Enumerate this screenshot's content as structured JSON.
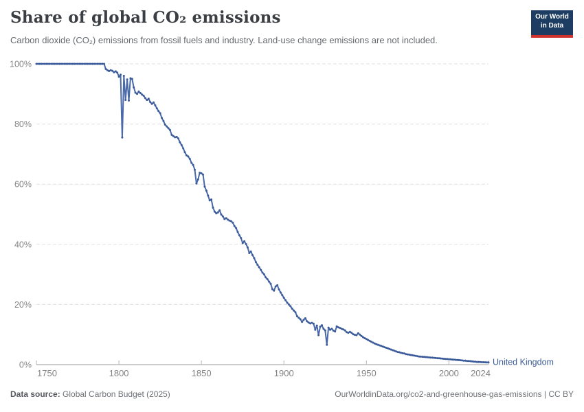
{
  "header": {
    "title": "Share of global CO₂ emissions",
    "subtitle": "Carbon dioxide (CO₂) emissions from fossil fuels and industry. Land-use change emissions are not included.",
    "logo": {
      "line1": "Our World",
      "line2": "in Data",
      "bg_color": "#1d3d63",
      "accent_color": "#d0342c"
    }
  },
  "footer": {
    "source_label": "Data source:",
    "source_value": " Global Carbon Budget (2025)",
    "link": "OurWorldinData.org/co2-and-greenhouse-gas-emissions | CC BY"
  },
  "chart_data": {
    "type": "line",
    "title": "Share of global CO₂ emissions",
    "xlabel": "",
    "ylabel": "",
    "xlim": [
      1750,
      2024
    ],
    "ylim": [
      0,
      100
    ],
    "grid": "horizontal-dashed",
    "legend_position": "end-of-line",
    "line_color": "#4a69a8",
    "marker_color": "#3a5a99",
    "label_color": "#3d5c96",
    "x_ticks": [
      {
        "value": 1750,
        "label": "1750"
      },
      {
        "value": 1800,
        "label": "1800"
      },
      {
        "value": 1850,
        "label": "1850"
      },
      {
        "value": 1900,
        "label": "1900"
      },
      {
        "value": 1950,
        "label": "1950"
      },
      {
        "value": 2000,
        "label": "2000"
      },
      {
        "value": 2024,
        "label": "2024"
      }
    ],
    "y_ticks": [
      {
        "value": 0,
        "label": "0%"
      },
      {
        "value": 20,
        "label": "20%"
      },
      {
        "value": 40,
        "label": "40%"
      },
      {
        "value": 60,
        "label": "60%"
      },
      {
        "value": 80,
        "label": "80%"
      },
      {
        "value": 100,
        "label": "100%"
      }
    ],
    "series": [
      {
        "name": "United Kingdom",
        "x_start": 1750,
        "x_step": 1,
        "values": [
          100,
          100,
          100,
          100,
          100,
          100,
          100,
          100,
          100,
          100,
          100,
          100,
          100,
          100,
          100,
          100,
          100,
          100,
          100,
          100,
          100,
          100,
          100,
          100,
          100,
          100,
          100,
          100,
          100,
          100,
          100,
          100,
          100,
          100,
          100,
          100,
          100,
          100,
          100,
          100,
          100,
          100,
          98.3,
          97.9,
          97.6,
          97.9,
          97.7,
          97.2,
          97.5,
          97.1,
          95.7,
          96.4,
          75.5,
          96,
          88,
          94.8,
          87.8,
          95.2,
          95,
          92.2,
          90.4,
          90,
          90.8,
          90.3,
          89.8,
          89.4,
          88.6,
          88,
          88.4,
          87.3,
          86.7,
          87.2,
          86.2,
          85.2,
          84.3,
          83.6,
          82,
          81,
          79.8,
          79.2,
          78.6,
          78,
          76.4,
          76,
          75.6,
          75.7,
          75.2,
          73.9,
          73,
          71.9,
          70.6,
          69.6,
          69.2,
          68.4,
          67.1,
          66.4,
          64.8,
          60.2,
          61.6,
          63.8,
          63.6,
          63.2,
          59.2,
          57.8,
          56.2,
          54.6,
          54.9,
          52.2,
          50.9,
          50.3,
          50.6,
          51.3,
          49.9,
          49.3,
          48.4,
          48.7,
          48.2,
          47.9,
          47.7,
          47.2,
          46.1,
          45.4,
          44.1,
          43,
          42.1,
          40.4,
          41,
          40.1,
          39,
          37.1,
          37.6,
          36.4,
          35.4,
          34.1,
          33.2,
          32.4,
          31.5,
          30.6,
          30,
          29,
          28.4,
          27.6,
          26.9,
          25.1,
          24.6,
          26,
          26.4,
          25,
          24,
          23.1,
          22.2,
          21.4,
          20.6,
          20,
          19.4,
          18.6,
          18,
          17.4,
          16.1,
          15.6,
          15.1,
          14.2,
          14.9,
          15.4,
          14.4,
          14,
          13.7,
          13.9,
          13.6,
          11.6,
          13,
          9.8,
          12.6,
          13.1,
          11.9,
          11.4,
          6.6,
          12.3,
          11.6,
          11.9,
          11.3,
          11,
          12.7,
          12.4,
          12.2,
          11.9,
          11.7,
          11.4,
          10.8,
          10.6,
          10.9,
          10.6,
          10.1,
          9.9,
          9.8,
          10.4,
          10,
          9.5,
          9.1,
          8.8,
          8.5,
          8.2,
          7.9,
          7.6,
          7.3,
          7,
          6.8,
          6.6,
          6.4,
          6.2,
          6,
          5.8,
          5.6,
          5.4,
          5.2,
          5,
          4.8,
          4.6,
          4.4,
          4.2,
          4.1,
          3.9,
          3.8,
          3.7,
          3.5,
          3.4,
          3.3,
          3.2,
          3.1,
          3,
          2.9,
          2.8,
          2.7,
          2.65,
          2.6,
          2.55,
          2.5,
          2.45,
          2.4,
          2.35,
          2.3,
          2.25,
          2.2,
          2.15,
          2.1,
          2.05,
          2,
          1.95,
          1.9,
          1.85,
          1.8,
          1.75,
          1.7,
          1.65,
          1.6,
          1.55,
          1.5,
          1.45,
          1.4,
          1.3,
          1.3,
          1.2,
          1.2,
          1.15,
          1.1,
          1,
          0.95,
          0.9,
          0.9,
          0.85,
          0.8,
          0.8,
          0.78,
          0.76,
          0.75
        ]
      }
    ]
  }
}
